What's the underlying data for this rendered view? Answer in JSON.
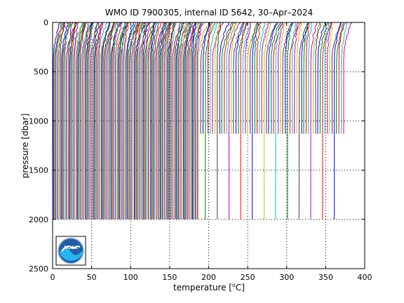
{
  "chart_data": {
    "type": "line",
    "title": "WMO ID 7900305, internal ID 5642, 30–Apr–2024",
    "xlabel_main": "temperature [",
    "xlabel_super": "o",
    "xlabel_unit": "C]",
    "ylabel": "pressure [dbar]",
    "xlim": [
      0,
      400
    ],
    "ylim": [
      0,
      2500
    ],
    "y_reversed": true,
    "x_ticks": [
      "0",
      "50",
      "100",
      "150",
      "200",
      "250",
      "300",
      "350",
      "400"
    ],
    "y_ticks": [
      "0",
      "500",
      "1000",
      "1500",
      "2000",
      "2500"
    ],
    "grid": "dotted",
    "description_note": "Waterfall of successive Argo temperature profiles, each offset along x",
    "profile_groups": [
      {
        "offset_start": 1,
        "offset_end": 187,
        "step": 1.5,
        "max_pressure": 2000
      },
      {
        "offset_start": 190,
        "offset_end": 375,
        "step": 3.0,
        "max_pressure": 1130,
        "long_every": 5,
        "long_max_pressure": 2000
      }
    ],
    "series_colors": [
      "#0000ff",
      "#008000",
      "#ff0000",
      "#00bfbf",
      "#bf00bf",
      "#bfbf00",
      "#404040"
    ]
  },
  "logo": {
    "text": "NOAA"
  }
}
